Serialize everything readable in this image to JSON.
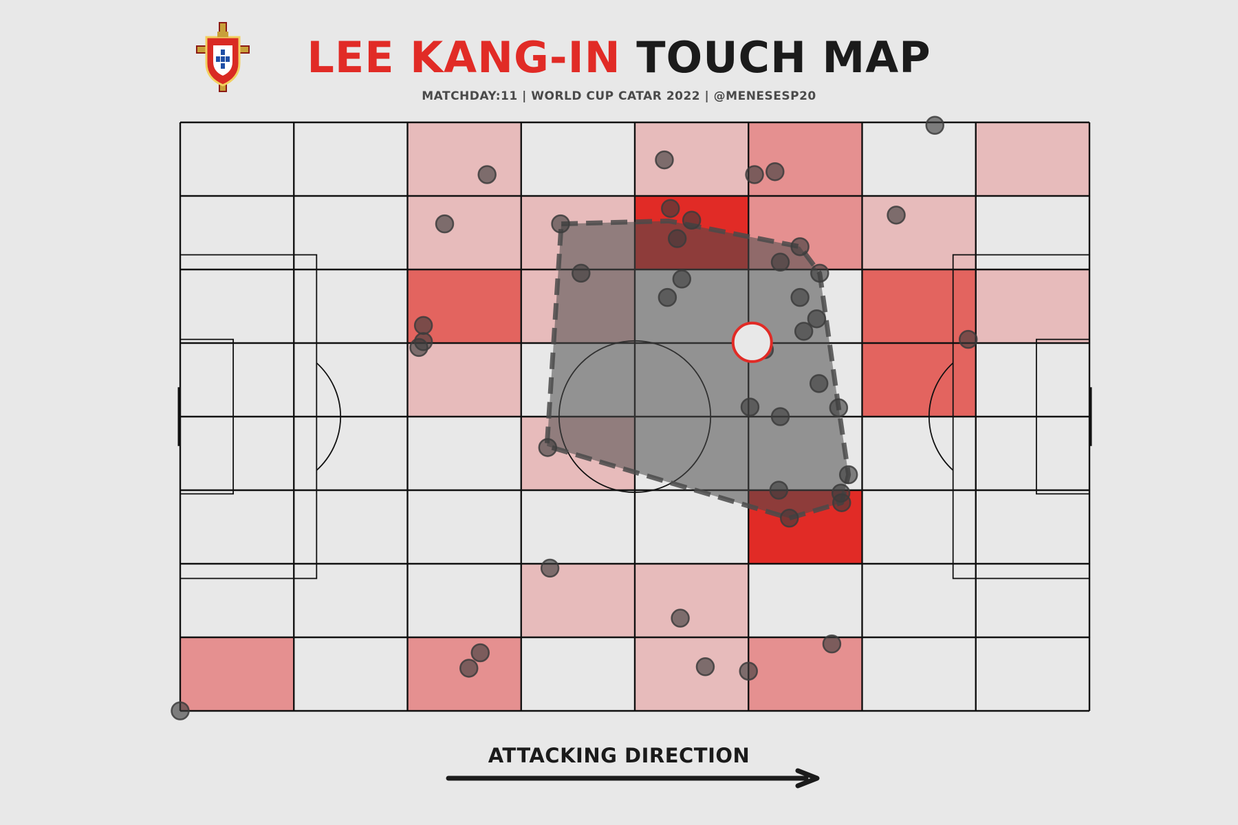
{
  "header": {
    "title_name": "LEE KANG-IN",
    "title_rest": "TOUCH MAP",
    "subtitle": "MATCHDAY:11 | WORLD CUP CATAR 2022 | @MENESESP20"
  },
  "footer": {
    "direction_label": "ATTACKING DIRECTION"
  },
  "colors": {
    "background": "#e8e8e8",
    "accent": "#e12b26",
    "line": "#111111",
    "touch": "#3c3c3c",
    "hull": "#4a4a4a",
    "heat_levels": [
      "#e8e8e8",
      "#e7bbbb",
      "#e59090",
      "#e3645f",
      "#e12b26"
    ]
  },
  "chart_data": {
    "type": "scatter",
    "title": "LEE KANG-IN TOUCH MAP",
    "xlim": [
      0,
      120
    ],
    "ylim": [
      0,
      80
    ],
    "grid": {
      "columns": 8,
      "rows": 8
    },
    "heatmap_levels": [
      [
        0,
        0,
        1,
        0,
        1,
        2,
        0,
        1
      ],
      [
        0,
        0,
        1,
        1,
        4,
        2,
        1,
        0
      ],
      [
        0,
        0,
        3,
        1,
        0,
        0,
        3,
        1
      ],
      [
        0,
        0,
        1,
        0,
        0,
        0,
        3,
        0
      ],
      [
        0,
        0,
        0,
        1,
        0,
        0,
        0,
        0
      ],
      [
        0,
        0,
        0,
        0,
        0,
        4,
        0,
        0
      ],
      [
        0,
        0,
        0,
        1,
        1,
        0,
        0,
        0
      ],
      [
        2,
        0,
        2,
        0,
        1,
        2,
        0,
        0
      ]
    ],
    "touches": [
      {
        "x": 40.5,
        "y": 72.9
      },
      {
        "x": 63.9,
        "y": 74.9
      },
      {
        "x": 75.8,
        "y": 72.9
      },
      {
        "x": 78.5,
        "y": 73.3
      },
      {
        "x": 99.6,
        "y": 79.6
      },
      {
        "x": 34.9,
        "y": 66.2
      },
      {
        "x": 50.2,
        "y": 66.2
      },
      {
        "x": 64.7,
        "y": 68.3
      },
      {
        "x": 67.5,
        "y": 66.7
      },
      {
        "x": 65.6,
        "y": 64.2
      },
      {
        "x": 81.8,
        "y": 63.1
      },
      {
        "x": 94.5,
        "y": 67.4
      },
      {
        "x": 52.9,
        "y": 59.5
      },
      {
        "x": 66.2,
        "y": 58.7
      },
      {
        "x": 64.3,
        "y": 56.2
      },
      {
        "x": 79.2,
        "y": 61.0
      },
      {
        "x": 84.4,
        "y": 59.5
      },
      {
        "x": 81.8,
        "y": 56.2
      },
      {
        "x": 84.0,
        "y": 53.3
      },
      {
        "x": 82.3,
        "y": 51.6
      },
      {
        "x": 32.1,
        "y": 52.4
      },
      {
        "x": 32.1,
        "y": 50.2
      },
      {
        "x": 31.5,
        "y": 49.4
      },
      {
        "x": 77.1,
        "y": 49.1
      },
      {
        "x": 84.3,
        "y": 44.5
      },
      {
        "x": 79.2,
        "y": 40.0
      },
      {
        "x": 75.2,
        "y": 41.3
      },
      {
        "x": 86.9,
        "y": 41.2
      },
      {
        "x": 104.0,
        "y": 50.5
      },
      {
        "x": 48.5,
        "y": 35.8
      },
      {
        "x": 88.2,
        "y": 32.1
      },
      {
        "x": 79.0,
        "y": 30.0
      },
      {
        "x": 87.2,
        "y": 29.6
      },
      {
        "x": 87.3,
        "y": 28.3
      },
      {
        "x": 80.4,
        "y": 26.2
      },
      {
        "x": 48.8,
        "y": 19.4
      },
      {
        "x": 66.0,
        "y": 12.6
      },
      {
        "x": 39.6,
        "y": 7.9
      },
      {
        "x": 38.1,
        "y": 5.8
      },
      {
        "x": 69.3,
        "y": 6.0
      },
      {
        "x": 75.0,
        "y": 5.4
      },
      {
        "x": 86.0,
        "y": 9.1
      },
      {
        "x": 0.0,
        "y": 0.0
      }
    ],
    "hull": [
      {
        "x": 50.3,
        "y": 66.2
      },
      {
        "x": 64.5,
        "y": 66.6
      },
      {
        "x": 81.8,
        "y": 63.1
      },
      {
        "x": 84.4,
        "y": 59.5
      },
      {
        "x": 86.9,
        "y": 41.2
      },
      {
        "x": 88.2,
        "y": 32.1
      },
      {
        "x": 87.3,
        "y": 28.3
      },
      {
        "x": 80.4,
        "y": 26.2
      },
      {
        "x": 48.4,
        "y": 36.0
      }
    ],
    "average_position": {
      "x": 75.5,
      "y": 50.1
    }
  }
}
